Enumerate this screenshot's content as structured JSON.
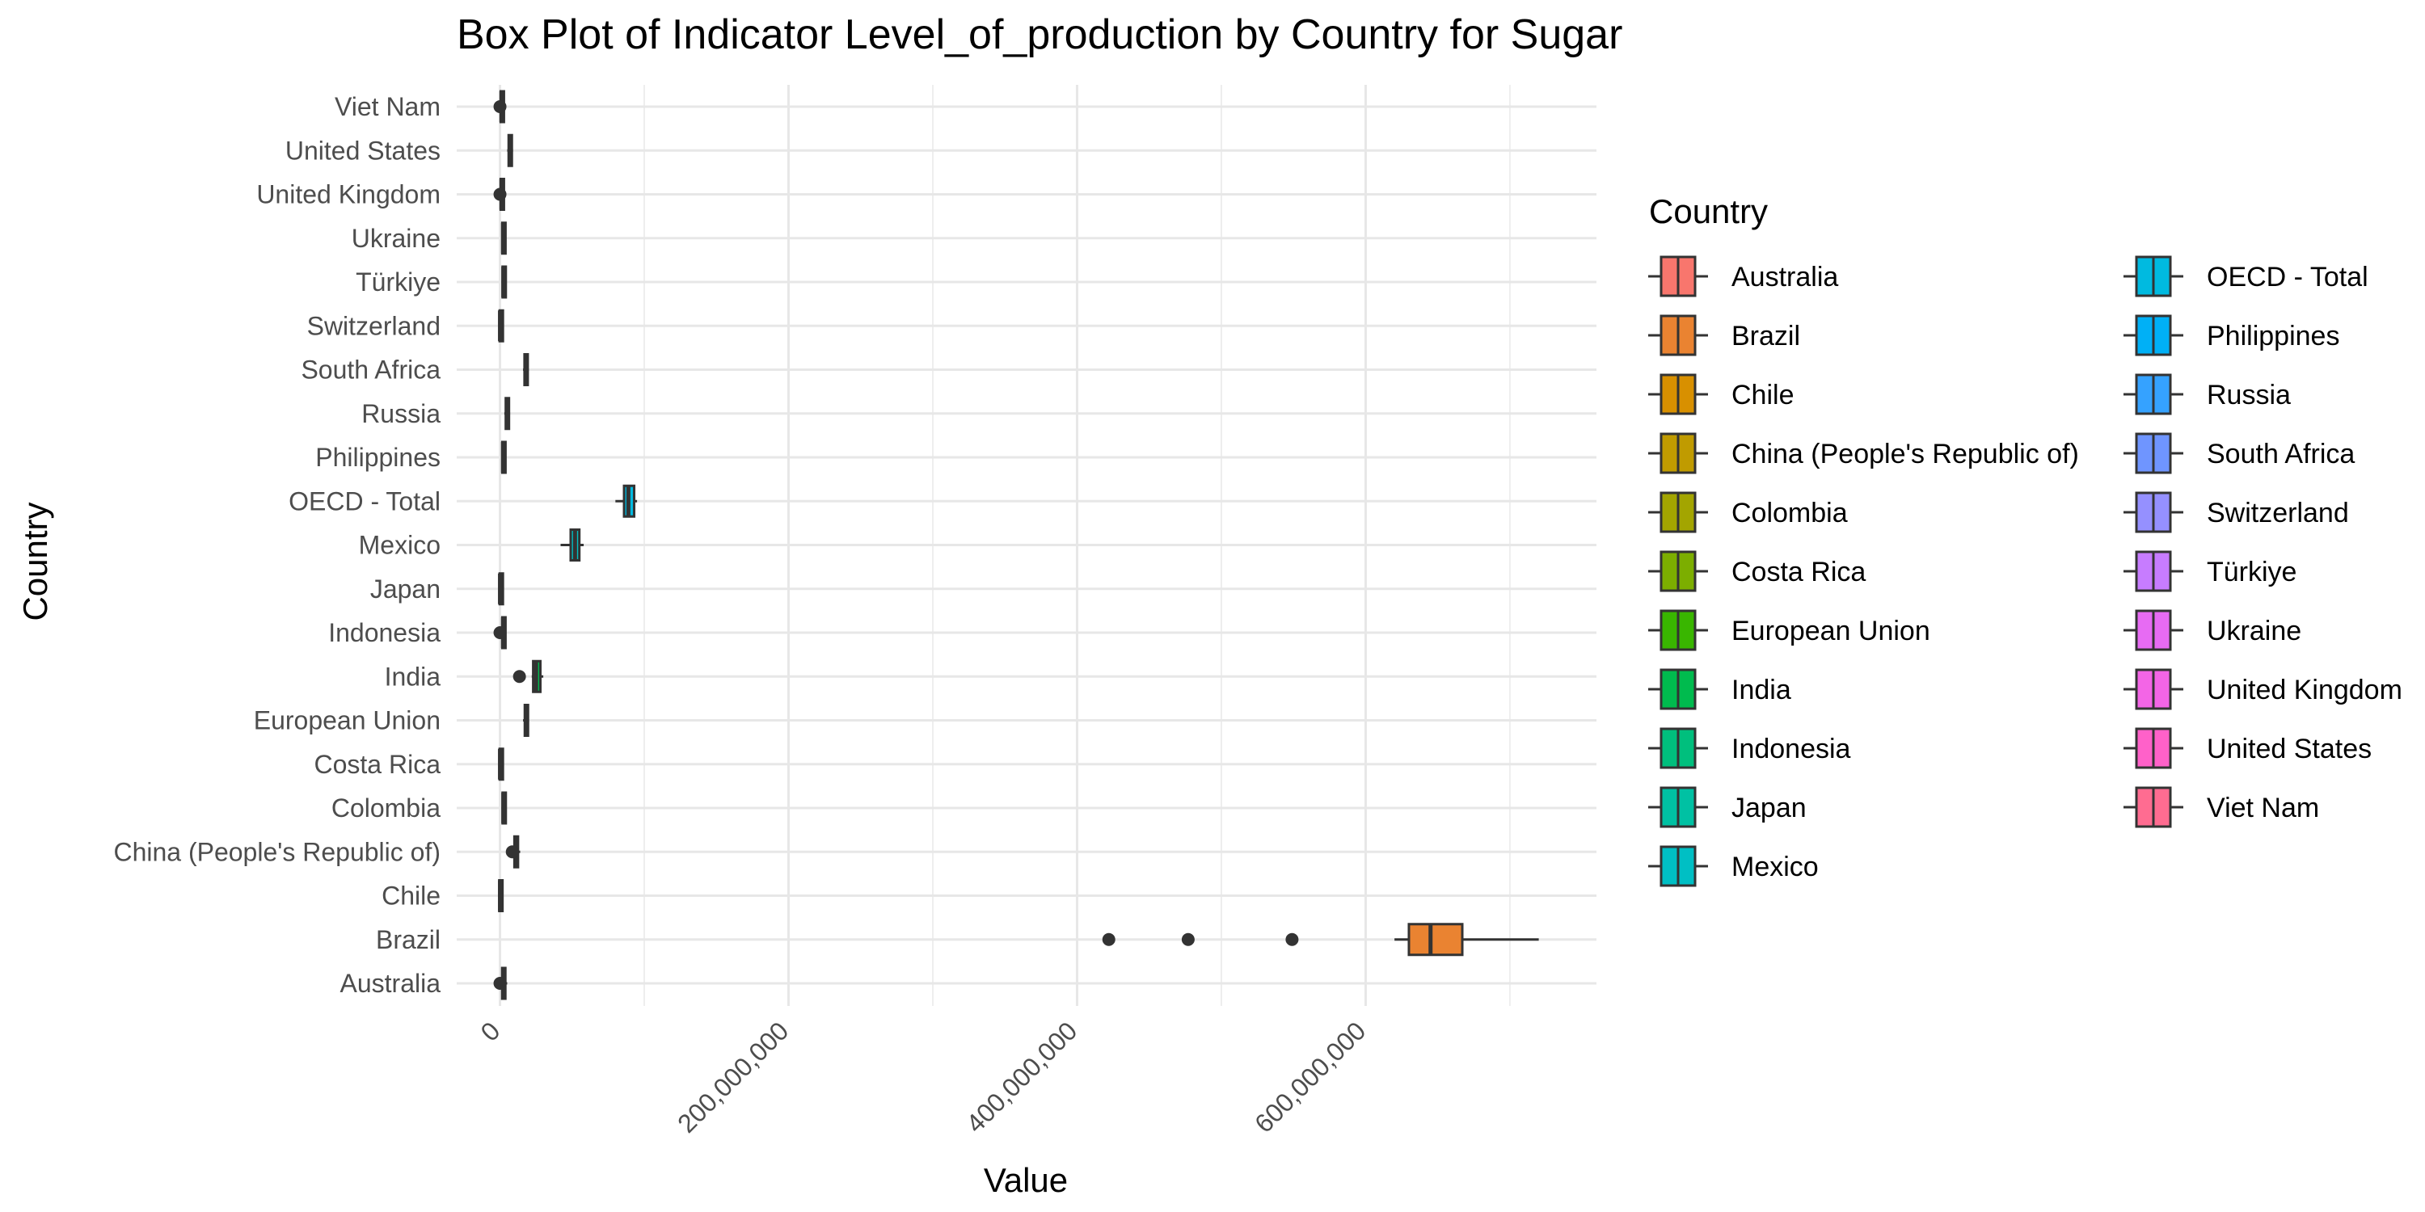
{
  "chart_data": {
    "type": "box",
    "title": "Box Plot of Indicator Level_of_production by Country for Sugar",
    "xlabel": "Value",
    "ylabel": "Country",
    "xlim": [
      -30000000,
      760000000
    ],
    "x_ticks": [
      {
        "value": 0,
        "label": "0"
      },
      {
        "value": 200000000,
        "label": "200,000,000"
      },
      {
        "value": 400000000,
        "label": "400,000,000"
      },
      {
        "value": 600000000,
        "label": "600,000,000"
      }
    ],
    "grid": true,
    "legend": {
      "title": "Country",
      "position": "right",
      "columns": 2
    },
    "categories": [
      "Australia",
      "Brazil",
      "Chile",
      "China (People's Republic of)",
      "Colombia",
      "Costa Rica",
      "European Union",
      "India",
      "Indonesia",
      "Japan",
      "Mexico",
      "OECD - Total",
      "Philippines",
      "Russia",
      "South Africa",
      "Switzerland",
      "Türkiye",
      "Ukraine",
      "United Kingdom",
      "United States",
      "Viet Nam"
    ],
    "series": [
      {
        "name": "Australia",
        "color": "#F8766D",
        "min": 0,
        "q1": 1500000,
        "median": 2500000,
        "q3": 3500000,
        "max": 5000000,
        "outliers": [
          0
        ]
      },
      {
        "name": "Brazil",
        "color": "#EA8331",
        "min": 620000000,
        "q1": 630000000,
        "median": 645000000,
        "q3": 667000000,
        "max": 720000000,
        "outliers": [
          422000000,
          477000000,
          549000000
        ]
      },
      {
        "name": "Chile",
        "color": "#D89000",
        "min": -1000000,
        "q1": -500000,
        "median": 0,
        "q3": 500000,
        "max": 1000000,
        "outliers": []
      },
      {
        "name": "China (People's Republic of)",
        "color": "#C09B00",
        "min": 8000000,
        "q1": 10000000,
        "median": 11500000,
        "q3": 12500000,
        "max": 14000000,
        "outliers": [
          8500000
        ]
      },
      {
        "name": "Colombia",
        "color": "#A3A500",
        "min": 1000000,
        "q1": 1800000,
        "median": 2300000,
        "q3": 2700000,
        "max": 3000000,
        "outliers": []
      },
      {
        "name": "Costa Rica",
        "color": "#7CAE00",
        "min": -500000,
        "q1": -200000,
        "median": 0,
        "q3": 200000,
        "max": 500000,
        "outliers": []
      },
      {
        "name": "European Union",
        "color": "#39B600",
        "min": 16000000,
        "q1": 17200000,
        "median": 18000000,
        "q3": 19200000,
        "max": 20000000,
        "outliers": []
      },
      {
        "name": "India",
        "color": "#00BB4E",
        "min": 22000000,
        "q1": 23000000,
        "median": 25000000,
        "q3": 28000000,
        "max": 30000000,
        "outliers": [
          13500000
        ]
      },
      {
        "name": "Indonesia",
        "color": "#00BF7D",
        "min": 1000000,
        "q1": 1600000,
        "median": 2100000,
        "q3": 2600000,
        "max": 3000000,
        "outliers": [
          0
        ]
      },
      {
        "name": "Japan",
        "color": "#00C1A3",
        "min": -500000,
        "q1": -200000,
        "median": 0,
        "q3": 200000,
        "max": 500000,
        "outliers": []
      },
      {
        "name": "Mexico",
        "color": "#00BFC4",
        "min": 42000000,
        "q1": 49000000,
        "median": 52000000,
        "q3": 55000000,
        "max": 58000000,
        "outliers": []
      },
      {
        "name": "OECD - Total",
        "color": "#00BAE0",
        "min": 80000000,
        "q1": 86000000,
        "median": 89000000,
        "q3": 93000000,
        "max": 95000000,
        "outliers": []
      },
      {
        "name": "Philippines",
        "color": "#00B0F6",
        "min": 1000000,
        "q1": 1600000,
        "median": 2100000,
        "q3": 2600000,
        "max": 3000000,
        "outliers": []
      },
      {
        "name": "Russia",
        "color": "#35A2FF",
        "min": 3000000,
        "q1": 4000000,
        "median": 5000000,
        "q3": 6000000,
        "max": 7000000,
        "outliers": []
      },
      {
        "name": "South Africa",
        "color": "#6F95FF",
        "min": 16000000,
        "q1": 17000000,
        "median": 18000000,
        "q3": 19000000,
        "max": 20000000,
        "outliers": []
      },
      {
        "name": "Switzerland",
        "color": "#9590FF",
        "min": -500000,
        "q1": -200000,
        "median": 0,
        "q3": 200000,
        "max": 500000,
        "outliers": []
      },
      {
        "name": "Türkiye",
        "color": "#C77CFF",
        "min": 1000000,
        "q1": 1800000,
        "median": 2300000,
        "q3": 2700000,
        "max": 3000000,
        "outliers": []
      },
      {
        "name": "Ukraine",
        "color": "#E76BF3",
        "min": 1000000,
        "q1": 1600000,
        "median": 2100000,
        "q3": 2600000,
        "max": 3000000,
        "outliers": []
      },
      {
        "name": "United Kingdom",
        "color": "#F365E6",
        "min": 0,
        "q1": 500000,
        "median": 1000000,
        "q3": 1500000,
        "max": 2000000,
        "outliers": [
          0
        ]
      },
      {
        "name": "United States",
        "color": "#FF61C9",
        "min": 5000000,
        "q1": 6000000,
        "median": 7000000,
        "q3": 8000000,
        "max": 9000000,
        "outliers": []
      },
      {
        "name": "Viet Nam",
        "color": "#FF6C91",
        "min": 0,
        "q1": 500000,
        "median": 1000000,
        "q3": 1500000,
        "max": 2000000,
        "outliers": [
          0
        ]
      }
    ]
  }
}
